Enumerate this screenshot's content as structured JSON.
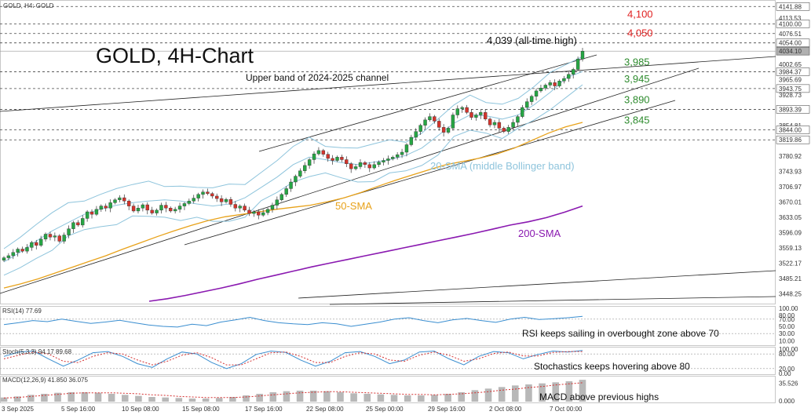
{
  "header": {
    "symbol_label": "GOLD, H4:  GOLD"
  },
  "main_title": "GOLD, 4H-Chart",
  "colors": {
    "up": "#26a644",
    "down": "#d4342c",
    "bollinger": "#8ec4dc",
    "sma50": "#e8a21a",
    "sma200": "#8a19b0",
    "resistance": "#e02020",
    "support": "#2e8b2e",
    "rsi": "#3a8ed0",
    "stoch_k": "#3a8ed0",
    "stoch_d": "#d43030",
    "macd_hist": "#b8b8b8",
    "macd_signal": "#d43030"
  },
  "annotations": {
    "ath": "4,039 (all-time high)",
    "upper_band": "Upper band of 2024-2025 channel",
    "bb_label": "20-SMA (middle Bollinger band)",
    "sma50_label": "50-SMA",
    "sma200_label": "200-SMA",
    "rsi_comment": "RSI keeps sailing in overbought zone above 70",
    "stoch_comment": "Stochastics keeps hovering above 80",
    "macd_comment": "MACD above previous highs"
  },
  "chart_data": [
    {
      "type": "candlestick",
      "title": "GOLD, 4H-Chart",
      "ylim": [
        3430,
        4150
      ],
      "y_ticks": [
        "4141.88",
        "4113.53",
        "4100.00",
        "4076.51",
        "4054.00",
        "4034.10",
        "4002.65",
        "3984.37",
        "3965.69",
        "3943.75",
        "3928.73",
        "3893.39",
        "3854.81",
        "3844.00",
        "3819.86",
        "3780.92",
        "3743.93",
        "3706.97",
        "3670.01",
        "3633.05",
        "3596.09",
        "3559.13",
        "3522.17",
        "3485.21",
        "3448.25"
      ],
      "x_labels": [
        "3 Sep 2025",
        "5 Sep 16:00",
        "10 Sep 08:00",
        "15 Sep 08:00",
        "17 Sep 16:00",
        "22 Sep 08:00",
        "25 Sep 00:00",
        "29 Sep 16:00",
        "2 Oct 08:00",
        "7 Oct 00:00"
      ],
      "key_levels": {
        "resistance": [
          {
            "label": "4,100",
            "value": 4100
          },
          {
            "label": "4,050",
            "value": 4054
          }
        ],
        "support": [
          {
            "label": "3,985",
            "value": 3984.37
          },
          {
            "label": "3,945",
            "value": 3943.75
          },
          {
            "label": "3,890",
            "value": 3893.39
          },
          {
            "label": "3,845",
            "value": 3844
          }
        ],
        "other_dotted": [
          4141.88,
          4076.51,
          3819.86
        ]
      },
      "all_time_high": 4039,
      "last_price": 4034.1,
      "closes": [
        3535,
        3540,
        3548,
        3556,
        3551,
        3560,
        3572,
        3565,
        3580,
        3592,
        3585,
        3588,
        3575,
        3590,
        3605,
        3620,
        3614,
        3630,
        3646,
        3640,
        3652,
        3660,
        3655,
        3668,
        3675,
        3680,
        3672,
        3660,
        3648,
        3655,
        3663,
        3650,
        3643,
        3650,
        3662,
        3655,
        3648,
        3652,
        3660,
        3666,
        3672,
        3679,
        3688,
        3694,
        3690,
        3684,
        3678,
        3670,
        3676,
        3664,
        3655,
        3660,
        3650,
        3642,
        3646,
        3638,
        3644,
        3652,
        3662,
        3675,
        3688,
        3702,
        3718,
        3732,
        3745,
        3758,
        3772,
        3786,
        3794,
        3785,
        3775,
        3770,
        3778,
        3772,
        3762,
        3750,
        3755,
        3765,
        3760,
        3752,
        3760,
        3766,
        3770,
        3774,
        3778,
        3784,
        3790,
        3808,
        3826,
        3840,
        3855,
        3868,
        3876,
        3865,
        3850,
        3838,
        3848,
        3880,
        3895,
        3898,
        3886,
        3874,
        3880,
        3886,
        3870,
        3856,
        3862,
        3848,
        3840,
        3850,
        3862,
        3876,
        3898,
        3912,
        3925,
        3938,
        3945,
        3952,
        3958,
        3950,
        3962,
        3968,
        3978,
        3990,
        4015,
        4034
      ],
      "series": [
        {
          "name": "50-SMA",
          "values": [
            3462,
            3472,
            3484,
            3498,
            3512,
            3526,
            3540,
            3556,
            3571,
            3586,
            3600,
            3613,
            3625,
            3634,
            3640,
            3646,
            3652,
            3657,
            3662,
            3670,
            3680,
            3693,
            3708,
            3722,
            3735,
            3748,
            3760,
            3768,
            3776,
            3786,
            3800,
            3818,
            3836,
            3851,
            3862
          ]
        },
        {
          "name": "200-SMA",
          "values": [
            3430,
            3436,
            3444,
            3453,
            3462,
            3472,
            3483,
            3493,
            3503,
            3513,
            3522,
            3531,
            3540,
            3549,
            3558,
            3567,
            3576,
            3585,
            3594,
            3604,
            3614,
            3622,
            3632,
            3645,
            3660
          ]
        },
        {
          "name": "20-SMA (middle Bollinger band)",
          "values": [
            3525,
            3548,
            3575,
            3600,
            3620,
            3640,
            3652,
            3662,
            3668,
            3672,
            3675,
            3672,
            3665,
            3660,
            3665,
            3680,
            3705,
            3730,
            3760,
            3778,
            3772,
            3765,
            3760,
            3766,
            3772,
            3782,
            3800,
            3830,
            3860,
            3880,
            3878,
            3870,
            3880,
            3905,
            3935,
            3970,
            3985
          ]
        }
      ]
    },
    {
      "type": "line",
      "title": "RSI(14) 77.69",
      "ylim": [
        0,
        100
      ],
      "y_ticks": [
        "100.00",
        "80.00",
        "70.00",
        "50.00",
        "30.00",
        "10.00"
      ],
      "series": [
        {
          "name": "RSI(14)",
          "values": [
            55,
            60,
            66,
            63,
            70,
            64,
            58,
            62,
            67,
            60,
            54,
            50,
            48,
            56,
            52,
            62,
            68,
            75,
            66,
            60,
            57,
            55,
            60,
            57,
            50,
            56,
            62,
            70,
            74,
            66,
            60,
            68,
            72,
            66,
            61,
            70,
            75,
            69,
            71,
            74,
            77.69
          ]
        }
      ]
    },
    {
      "type": "line",
      "title": "Stoch(5,3,3) 94.17 89.68",
      "ylim": [
        0,
        100
      ],
      "y_ticks": [
        "100.00",
        "80.00",
        "20.00",
        "0.00"
      ],
      "series": [
        {
          "name": "%K",
          "values": [
            70,
            88,
            92,
            60,
            30,
            55,
            85,
            90,
            70,
            40,
            25,
            60,
            88,
            80,
            45,
            20,
            40,
            78,
            92,
            86,
            55,
            30,
            50,
            85,
            90,
            70,
            40,
            55,
            88,
            92,
            60,
            35,
            70,
            90,
            85,
            60,
            78,
            92,
            88,
            94.17
          ]
        },
        {
          "name": "%D",
          "values": [
            60,
            75,
            88,
            80,
            50,
            45,
            70,
            85,
            80,
            55,
            35,
            50,
            75,
            85,
            65,
            35,
            35,
            60,
            85,
            88,
            70,
            45,
            45,
            70,
            85,
            80,
            55,
            50,
            75,
            88,
            75,
            50,
            60,
            82,
            88,
            72,
            72,
            86,
            90,
            89.68
          ]
        }
      ]
    },
    {
      "type": "bar",
      "title": "MACD(12,26,9) 41.850 36.075",
      "y_ticks": [
        "35.526",
        "0.000"
      ],
      "series": [
        {
          "name": "MACD",
          "values": [
            8,
            10,
            13,
            15,
            17,
            18,
            18,
            17,
            15,
            13,
            11,
            9,
            8,
            7,
            6,
            6,
            7,
            9,
            12,
            15,
            18,
            20,
            21,
            21,
            20,
            18,
            16,
            15,
            14,
            13,
            12,
            12,
            13,
            15,
            18,
            22,
            25,
            28,
            31,
            33,
            35,
            37,
            39,
            41.85
          ]
        },
        {
          "name": "Signal",
          "values": [
            7,
            8,
            10,
            12,
            14,
            16,
            17,
            17,
            17,
            16,
            15,
            13,
            12,
            10,
            9,
            8,
            8,
            8,
            9,
            11,
            13,
            15,
            17,
            18,
            19,
            19,
            18,
            17,
            16,
            15,
            14,
            14,
            13,
            14,
            15,
            17,
            19,
            22,
            24,
            27,
            29,
            32,
            34,
            36.075
          ]
        }
      ]
    }
  ]
}
